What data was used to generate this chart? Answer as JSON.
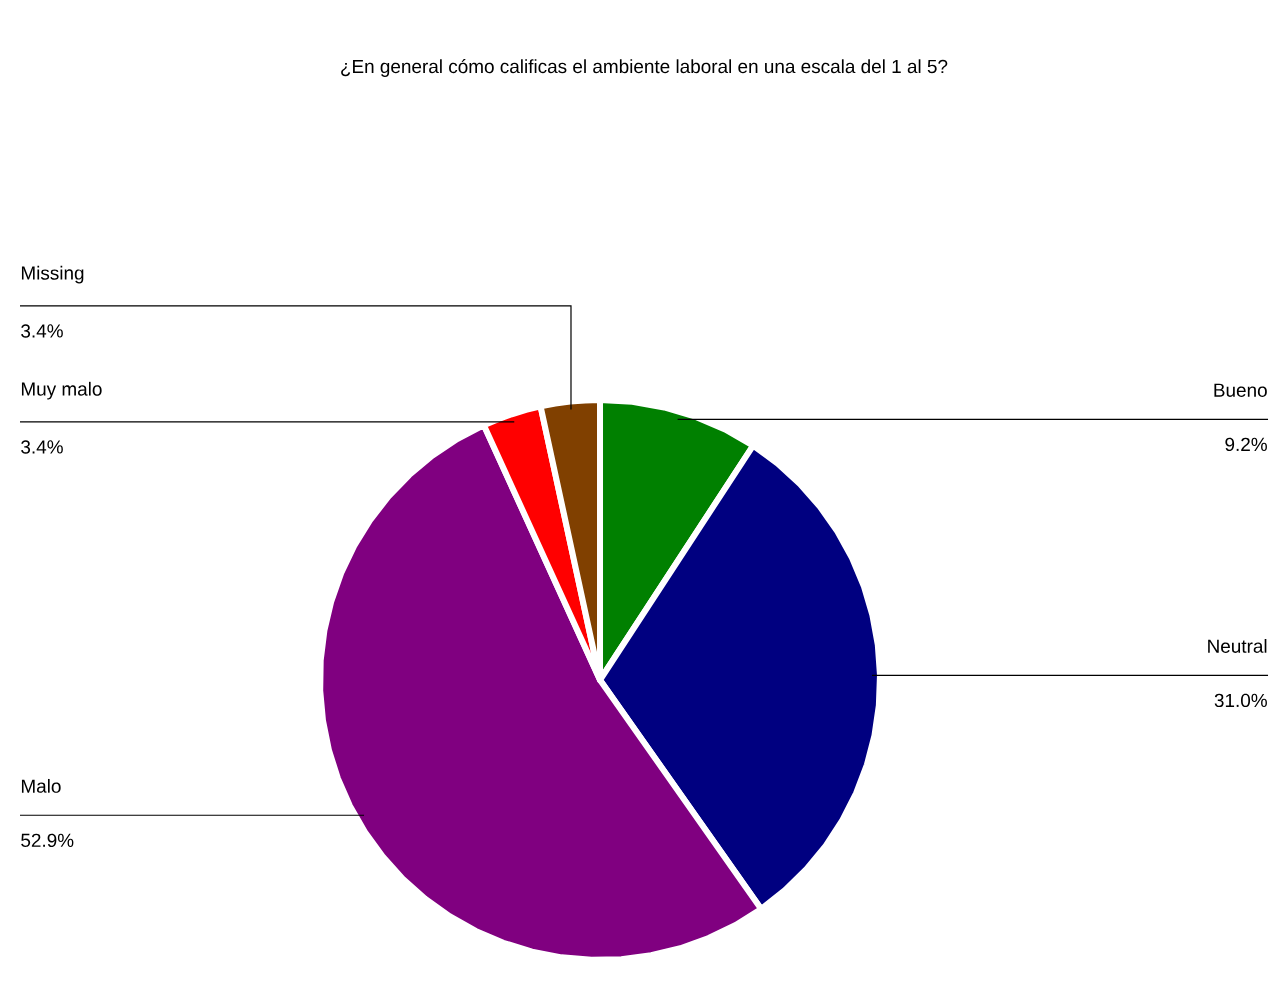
{
  "chart_data": {
    "type": "pie",
    "title": "¿En general cómo calificas el ambiente laboral en una escala del 1 al 5?",
    "categories": [
      "Bueno",
      "Neutral",
      "Malo",
      "Muy malo",
      "Missing"
    ],
    "values": [
      9.2,
      31.0,
      52.9,
      3.4,
      3.4
    ],
    "colors": [
      "#008000",
      "#000080",
      "#800080",
      "#ff0000",
      "#804000"
    ],
    "value_labels": [
      "9.2%",
      "31.0%",
      "52.9%",
      "3.4%",
      "3.4%"
    ],
    "legend": false
  }
}
